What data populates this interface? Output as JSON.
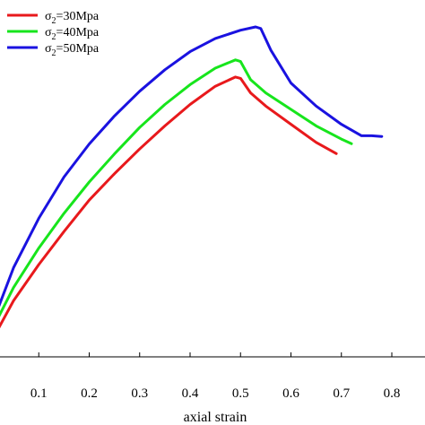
{
  "chart_data": {
    "type": "line",
    "xlabel": "axial strain",
    "ylabel": "",
    "xlim": [
      0.0,
      0.8
    ],
    "x_ticks": [
      "0.1",
      "0.2",
      "0.3",
      "0.4",
      "0.5",
      "0.6",
      "0.7",
      "0.8"
    ],
    "x_tick_values": [
      0.1,
      0.2,
      0.3,
      0.4,
      0.5,
      0.6,
      0.7,
      0.8
    ],
    "ylim": [
      0,
      100
    ],
    "grid": false,
    "legend_position": "top-left",
    "series": [
      {
        "name": "σ₂=30Mpa",
        "legend_base": "σ",
        "legend_sub": "2",
        "legend_rest": "=30Mpa",
        "color": "#e8191c",
        "x": [
          0.0,
          0.05,
          0.1,
          0.15,
          0.2,
          0.25,
          0.3,
          0.35,
          0.4,
          0.45,
          0.49,
          0.5,
          0.52,
          0.55,
          0.6,
          0.65,
          0.69
        ],
        "y": [
          3.0,
          17.0,
          28.0,
          38.0,
          47.5,
          55.5,
          63.0,
          70.0,
          76.5,
          82.0,
          84.8,
          84.4,
          80.0,
          76.0,
          70.5,
          65.0,
          61.6
        ]
      },
      {
        "name": "σ₂=40Mpa",
        "legend_base": "σ",
        "legend_sub": "2",
        "legend_rest": "=40Mpa",
        "color": "#17e51c",
        "x": [
          0.0,
          0.05,
          0.1,
          0.15,
          0.2,
          0.25,
          0.3,
          0.35,
          0.4,
          0.45,
          0.49,
          0.5,
          0.52,
          0.55,
          0.6,
          0.65,
          0.7,
          0.72
        ],
        "y": [
          6.0,
          21.0,
          33.0,
          43.5,
          53.0,
          61.5,
          69.5,
          76.5,
          82.5,
          87.5,
          90.0,
          89.5,
          84.0,
          80.0,
          75.0,
          70.0,
          66.0,
          64.6
        ]
      },
      {
        "name": "σ₂=50Mpa",
        "legend_base": "σ",
        "legend_sub": "2",
        "legend_rest": "=50Mpa",
        "color": "#1a12e0",
        "x": [
          0.0,
          0.05,
          0.1,
          0.15,
          0.2,
          0.25,
          0.3,
          0.35,
          0.4,
          0.45,
          0.5,
          0.53,
          0.54,
          0.56,
          0.6,
          0.65,
          0.7,
          0.74,
          0.76,
          0.78
        ],
        "y": [
          7.0,
          27.0,
          42.0,
          54.5,
          64.5,
          73.0,
          80.5,
          87.0,
          92.5,
          96.5,
          99.0,
          100.0,
          99.5,
          93.0,
          83.0,
          76.0,
          70.5,
          67.0,
          67.0,
          66.8
        ]
      }
    ]
  }
}
